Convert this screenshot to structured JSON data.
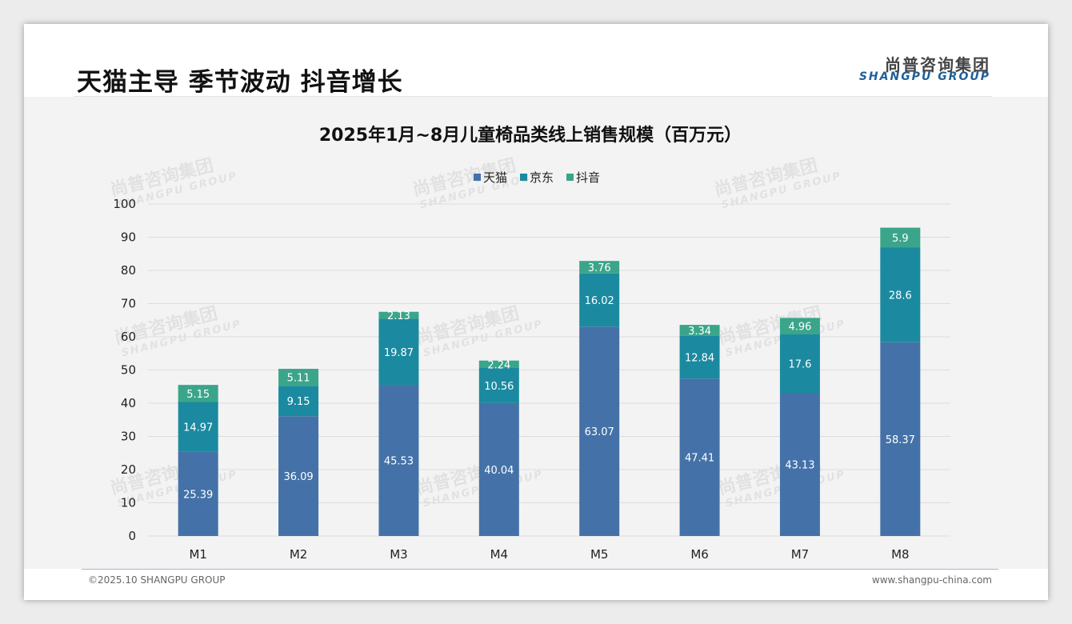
{
  "header": {
    "headline": "天猫主导 季节波动 抖音增长",
    "logo_cn": "尚普咨询集团",
    "logo_en": "SHANGPU GROUP"
  },
  "footer": {
    "copyright": "©2025.10 SHANGPU GROUP",
    "website": "www.shangpu-china.com"
  },
  "watermark": {
    "cn": "尚普咨询集团",
    "en": "SHANGPU GROUP"
  },
  "colors": {
    "tmall": "#4472a8",
    "jd": "#1b8aa0",
    "douyin": "#3aa58a",
    "grid": "#dcdcdc"
  },
  "chart_data": {
    "type": "bar",
    "stacked": true,
    "title": "2025年1月~8月儿童椅品类线上销售规模（百万元）",
    "categories": [
      "M1",
      "M2",
      "M3",
      "M4",
      "M5",
      "M6",
      "M7",
      "M8"
    ],
    "series": [
      {
        "name": "天猫",
        "values": [
          25.39,
          36.09,
          45.53,
          40.04,
          63.07,
          47.41,
          43.13,
          58.37
        ],
        "labels": [
          "25.39",
          "36.09",
          "45.53",
          "40.04",
          "63.07",
          "47.41",
          "43.13",
          "58.37"
        ]
      },
      {
        "name": "京东",
        "values": [
          14.97,
          9.15,
          19.87,
          10.56,
          16.02,
          12.84,
          17.6,
          28.6
        ],
        "labels": [
          "14.97",
          "9.15",
          "19.87",
          "10.56",
          "16.02",
          "12.84",
          "17.6",
          "28.6"
        ]
      },
      {
        "name": "抖音",
        "values": [
          5.15,
          5.11,
          2.13,
          2.24,
          3.76,
          3.34,
          4.96,
          5.9
        ],
        "labels": [
          "5.15",
          "5.11",
          "2.13",
          "2.24",
          "3.76",
          "3.34",
          "4.96",
          "5.9"
        ]
      }
    ],
    "yticks": [
      "0",
      "10",
      "20",
      "30",
      "40",
      "50",
      "60",
      "70",
      "80",
      "90",
      "100"
    ],
    "ylim": [
      0,
      100
    ],
    "xlabel": "",
    "ylabel": "",
    "legend_position": "top-center",
    "grid": true
  }
}
